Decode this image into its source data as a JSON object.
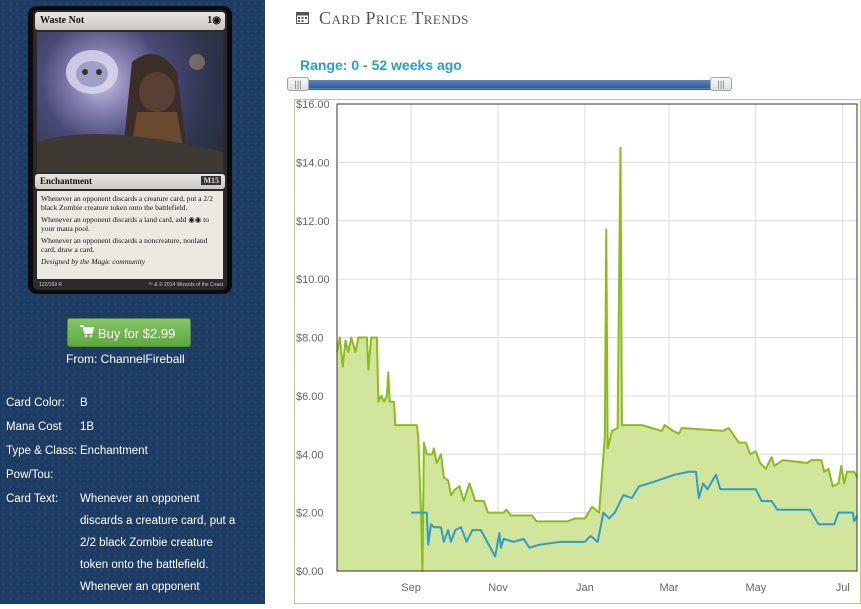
{
  "card": {
    "name": "Waste Not",
    "mana_cost_display": "1◉",
    "type_line": "Enchantment",
    "set_symbol": "M15",
    "rules": [
      "Whenever an opponent discards a creature card, put a 2/2 black Zombie creature token onto the battlefield.",
      "Whenever an opponent discards a land card, add ◉◉ to your mana pool.",
      "Whenever an opponent discards a noncreature, nonland card, draw a card."
    ],
    "flavor": "Designed by the Magic community",
    "collector": "122/269 R",
    "copyright": "™ & © 2014 Wizards of the Coast"
  },
  "buy": {
    "icon": "cart-icon",
    "label": "Buy for $2.99",
    "from": "From: ChannelFireball"
  },
  "details": [
    {
      "label": "Card Color:",
      "value": "B"
    },
    {
      "label": "Mana Cost",
      "value": "1B"
    },
    {
      "label": "Type & Class:",
      "value": "Enchantment"
    },
    {
      "label": "Pow/Tou:",
      "value": ""
    },
    {
      "label": "Card Text:",
      "value": ""
    }
  ],
  "card_text_lines": [
    "Whenever an opponent",
    "discards a creature card, put a",
    "2/2 black Zombie creature",
    "token onto the battlefield.",
    "Whenever an opponent"
  ],
  "section": {
    "title": "Card Price Trends",
    "icon": "calendar-icon"
  },
  "range": {
    "label": "Range: 0 - 52 weeks ago",
    "min": 0,
    "max": 52
  },
  "colors": {
    "sidebar": "#1d3b63",
    "green_line": "#8dbb1e",
    "green_fill": "#d2e59c",
    "blue_line": "#2e9dc7",
    "buy": "#6cb04d"
  },
  "chart_data": {
    "type": "area",
    "title": "",
    "xlabel": "",
    "ylabel": "",
    "ylim": [
      0,
      16
    ],
    "y_ticks": [
      "$0.00",
      "$2.00",
      "$4.00",
      "$6.00",
      "$8.00",
      "$10.00",
      "$12.00",
      "$14.00",
      "$16.00"
    ],
    "x_ticks": [
      {
        "label": "Sep",
        "date": "2014-09-01"
      },
      {
        "label": "Nov",
        "date": "2014-11-01"
      },
      {
        "label": "Jan",
        "date": "2015-01-01"
      },
      {
        "label": "Mar",
        "date": "2015-03-01"
      },
      {
        "label": "May",
        "date": "2015-05-01"
      },
      {
        "label": "Jul",
        "date": "2015-07-01"
      }
    ],
    "xlim": [
      "2014-07-11",
      "2015-07-11"
    ],
    "grid": true,
    "series": [
      {
        "name": "",
        "color": "#8dbb1e",
        "fill": true,
        "points": [
          [
            "2014-07-11",
            7.5
          ],
          [
            "2014-07-13",
            8.0
          ],
          [
            "2014-07-15",
            7.0
          ],
          [
            "2014-07-17",
            7.9
          ],
          [
            "2014-07-19",
            7.5
          ],
          [
            "2014-07-21",
            8.0
          ],
          [
            "2014-07-24",
            7.5
          ],
          [
            "2014-07-26",
            8.0
          ],
          [
            "2014-08-01",
            8.0
          ],
          [
            "2014-08-02",
            6.9
          ],
          [
            "2014-08-04",
            8.0
          ],
          [
            "2014-08-08",
            8.0
          ],
          [
            "2014-08-09",
            5.8
          ],
          [
            "2014-08-11",
            6.0
          ],
          [
            "2014-08-13",
            5.8
          ],
          [
            "2014-08-15",
            6.0
          ],
          [
            "2014-08-16",
            6.8
          ],
          [
            "2014-08-17",
            5.8
          ],
          [
            "2014-08-20",
            5.8
          ],
          [
            "2014-08-21",
            5.0
          ],
          [
            "2014-09-05",
            5.0
          ],
          [
            "2014-09-06",
            4.6
          ],
          [
            "2014-09-08",
            2.0
          ],
          [
            "2014-09-09",
            0.0
          ],
          [
            "2014-09-10",
            4.4
          ],
          [
            "2014-09-12",
            4.0
          ],
          [
            "2014-09-16",
            4.0
          ],
          [
            "2014-09-17",
            4.2
          ],
          [
            "2014-09-19",
            3.7
          ],
          [
            "2014-09-22",
            4.0
          ],
          [
            "2014-09-24",
            3.2
          ],
          [
            "2014-09-27",
            3.1
          ],
          [
            "2014-09-29",
            2.6
          ],
          [
            "2014-10-02",
            2.8
          ],
          [
            "2014-10-05",
            2.9
          ],
          [
            "2014-10-08",
            2.4
          ],
          [
            "2014-10-12",
            3.0
          ],
          [
            "2014-10-16",
            2.4
          ],
          [
            "2014-10-22",
            2.4
          ],
          [
            "2014-10-25",
            2.0
          ],
          [
            "2014-11-05",
            2.0
          ],
          [
            "2014-11-07",
            2.1
          ],
          [
            "2014-11-10",
            1.9
          ],
          [
            "2014-11-25",
            1.9
          ],
          [
            "2014-11-28",
            1.7
          ],
          [
            "2014-12-20",
            1.7
          ],
          [
            "2014-12-25",
            1.8
          ],
          [
            "2015-01-01",
            1.8
          ],
          [
            "2015-01-06",
            2.2
          ],
          [
            "2015-01-11",
            2.0
          ],
          [
            "2015-01-15",
            4.6
          ],
          [
            "2015-01-16",
            11.7
          ],
          [
            "2015-01-17",
            4.2
          ],
          [
            "2015-01-20",
            4.8
          ],
          [
            "2015-01-24",
            4.9
          ],
          [
            "2015-01-26",
            14.5
          ],
          [
            "2015-01-27",
            5.0
          ],
          [
            "2015-02-10",
            5.0
          ],
          [
            "2015-02-17",
            4.9
          ],
          [
            "2015-02-24",
            4.8
          ],
          [
            "2015-02-26",
            5.0
          ],
          [
            "2015-03-04",
            4.8
          ],
          [
            "2015-03-08",
            4.7
          ],
          [
            "2015-03-10",
            4.9
          ],
          [
            "2015-04-08",
            4.8
          ],
          [
            "2015-04-12",
            4.9
          ],
          [
            "2015-04-19",
            4.4
          ],
          [
            "2015-04-24",
            4.4
          ],
          [
            "2015-04-27",
            4.0
          ],
          [
            "2015-05-01",
            4.1
          ],
          [
            "2015-05-04",
            3.7
          ],
          [
            "2015-05-08",
            3.5
          ],
          [
            "2015-05-12",
            3.9
          ],
          [
            "2015-05-14",
            3.6
          ],
          [
            "2015-05-20",
            3.8
          ],
          [
            "2015-06-06",
            3.7
          ],
          [
            "2015-06-09",
            3.8
          ],
          [
            "2015-06-16",
            3.8
          ],
          [
            "2015-06-18",
            3.4
          ],
          [
            "2015-06-21",
            3.5
          ],
          [
            "2015-06-24",
            2.9
          ],
          [
            "2015-06-28",
            3.0
          ],
          [
            "2015-06-30",
            3.6
          ],
          [
            "2015-07-02",
            3.0
          ],
          [
            "2015-07-04",
            3.4
          ],
          [
            "2015-07-09",
            3.4
          ],
          [
            "2015-07-11",
            3.2
          ]
        ]
      },
      {
        "name": "",
        "color": "#2e9dc7",
        "fill": false,
        "points": [
          [
            "2014-09-01",
            2.0
          ],
          [
            "2014-09-12",
            2.0
          ],
          [
            "2014-09-13",
            0.9
          ],
          [
            "2014-09-15",
            1.6
          ],
          [
            "2014-09-17",
            1.5
          ],
          [
            "2014-09-22",
            1.5
          ],
          [
            "2014-09-24",
            1.0
          ],
          [
            "2014-09-27",
            1.4
          ],
          [
            "2014-09-29",
            1.0
          ],
          [
            "2014-10-02",
            1.4
          ],
          [
            "2014-10-06",
            1.5
          ],
          [
            "2014-10-10",
            1.0
          ],
          [
            "2014-10-14",
            1.4
          ],
          [
            "2014-10-20",
            1.4
          ],
          [
            "2014-10-30",
            0.5
          ],
          [
            "2014-11-02",
            1.3
          ],
          [
            "2014-11-03",
            0.8
          ],
          [
            "2014-11-05",
            1.1
          ],
          [
            "2014-11-12",
            1.0
          ],
          [
            "2014-11-19",
            1.1
          ],
          [
            "2014-11-23",
            0.8
          ],
          [
            "2014-11-30",
            0.9
          ],
          [
            "2014-12-15",
            1.0
          ],
          [
            "2015-01-01",
            1.0
          ],
          [
            "2015-01-05",
            1.2
          ],
          [
            "2015-01-10",
            1.0
          ],
          [
            "2015-01-14",
            2.0
          ],
          [
            "2015-01-18",
            1.8
          ],
          [
            "2015-01-22",
            2.0
          ],
          [
            "2015-01-28",
            2.6
          ],
          [
            "2015-02-03",
            2.5
          ],
          [
            "2015-02-08",
            2.9
          ],
          [
            "2015-02-15",
            3.0
          ],
          [
            "2015-03-05",
            3.3
          ],
          [
            "2015-03-15",
            3.4
          ],
          [
            "2015-03-20",
            3.4
          ],
          [
            "2015-03-22",
            2.5
          ],
          [
            "2015-03-25",
            3.0
          ],
          [
            "2015-03-28",
            2.8
          ],
          [
            "2015-04-03",
            3.3
          ],
          [
            "2015-04-06",
            2.8
          ],
          [
            "2015-05-01",
            2.8
          ],
          [
            "2015-05-05",
            2.4
          ],
          [
            "2015-05-12",
            2.4
          ],
          [
            "2015-05-16",
            2.1
          ],
          [
            "2015-06-08",
            2.1
          ],
          [
            "2015-06-14",
            1.6
          ],
          [
            "2015-06-25",
            1.6
          ],
          [
            "2015-06-28",
            2.0
          ],
          [
            "2015-07-08",
            2.0
          ],
          [
            "2015-07-09",
            1.7
          ],
          [
            "2015-07-11",
            1.9
          ]
        ]
      }
    ]
  }
}
